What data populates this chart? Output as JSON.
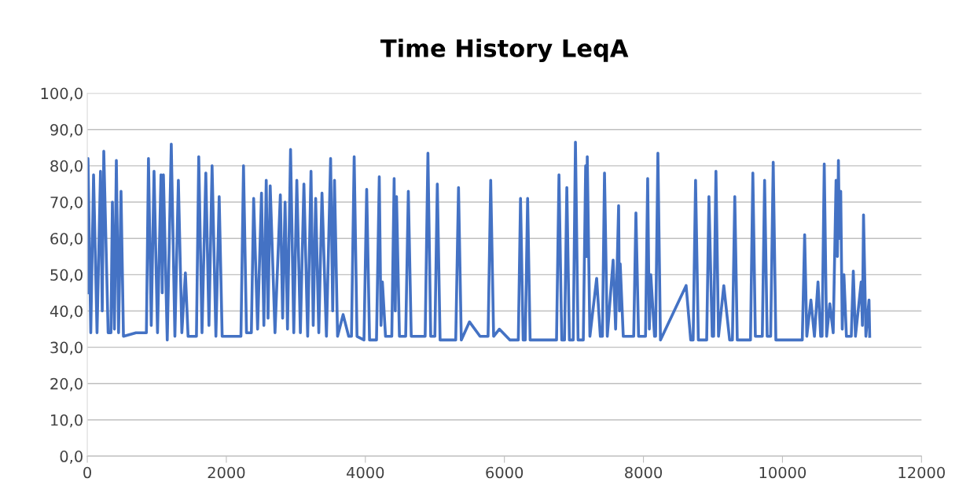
{
  "chart_data": {
    "type": "line",
    "title": "Time History LeqA",
    "x": [
      0,
      10,
      50,
      90,
      140,
      190,
      215,
      237,
      300,
      340,
      361,
      390,
      418,
      450,
      485,
      520,
      700,
      850,
      880,
      920,
      960,
      1010,
      1060,
      1078,
      1095,
      1150,
      1208,
      1260,
      1310,
      1360,
      1411,
      1450,
      1570,
      1603,
      1650,
      1705,
      1750,
      1795,
      1850,
      1897,
      1940,
      2210,
      2247,
      2290,
      2360,
      2393,
      2450,
      2506,
      2540,
      2574,
      2600,
      2631,
      2700,
      2777,
      2810,
      2845,
      2880,
      2924,
      2970,
      3014,
      3065,
      3116,
      3170,
      3218,
      3250,
      3285,
      3330,
      3376,
      3440,
      3500,
      3530,
      3556,
      3600,
      3680,
      3760,
      3800,
      3839,
      3880,
      3980,
      4019,
      4060,
      4160,
      4200,
      4225,
      4245,
      4290,
      4380,
      4414,
      4430,
      4448,
      4490,
      4580,
      4618,
      4660,
      4860,
      4900,
      4940,
      5000,
      5035,
      5075,
      5300,
      5340,
      5380,
      5498,
      5650,
      5765,
      5803,
      5845,
      5927,
      6080,
      6200,
      6232,
      6270,
      6300,
      6334,
      6370,
      6750,
      6785,
      6825,
      6865,
      6898,
      6935,
      6990,
      7022,
      7060,
      7135,
      7169,
      7180,
      7192,
      7230,
      7327,
      7380,
      7410,
      7440,
      7480,
      7564,
      7600,
      7643,
      7655,
      7666,
      7710,
      7860,
      7892,
      7930,
      8030,
      8061,
      8085,
      8106,
      8160,
      8175,
      8208,
      8245,
      8614,
      8680,
      8715,
      8750,
      8790,
      8910,
      8942,
      8990,
      9010,
      9043,
      9080,
      9156,
      9240,
      9280,
      9314,
      9350,
      9540,
      9574,
      9610,
      9710,
      9743,
      9780,
      9830,
      9867,
      9905,
      10285,
      10319,
      10350,
      10409,
      10460,
      10511,
      10550,
      10570,
      10601,
      10635,
      10681,
      10730,
      10771,
      10790,
      10805,
      10820,
      10838,
      10860,
      10884,
      10920,
      10990,
      11019,
      11050,
      11132,
      11150,
      11166,
      11200,
      11245,
      11255
    ],
    "series": [
      {
        "color": "#4472c4",
        "values": [
          45,
          82,
          34,
          77.5,
          34,
          78.5,
          40,
          84,
          34,
          34,
          70,
          35,
          81.5,
          34,
          73,
          33,
          34,
          34,
          82,
          36,
          78.5,
          34,
          77.5,
          45,
          77.5,
          32,
          86,
          33,
          76,
          34,
          50.5,
          33,
          33,
          82.5,
          34,
          78,
          36,
          80,
          33,
          71.5,
          33,
          33,
          80,
          34,
          34,
          71,
          35,
          72.5,
          36,
          76,
          38,
          74.5,
          34,
          72,
          38,
          70,
          35,
          84.5,
          34,
          76,
          34,
          75,
          33,
          78.5,
          36,
          71,
          34,
          72.5,
          33,
          82,
          40,
          76,
          33,
          39,
          33,
          33,
          82.5,
          33,
          32,
          73.5,
          32,
          32,
          77,
          36,
          48,
          33,
          33,
          76.5,
          40,
          71.5,
          33,
          33,
          73,
          33,
          33,
          83.5,
          33,
          33,
          75,
          32,
          32,
          74,
          32,
          37,
          33,
          33,
          76,
          33,
          35,
          32,
          32,
          71,
          32,
          32,
          71,
          32,
          32,
          77.5,
          32,
          32,
          74,
          32,
          32,
          86.5,
          32,
          32,
          80,
          55,
          82.5,
          33,
          49,
          33,
          33,
          78,
          33,
          54,
          35,
          69,
          40,
          53,
          33,
          33,
          67,
          33,
          33,
          76.5,
          35,
          50,
          33,
          33,
          83.5,
          32,
          47,
          32,
          32,
          76,
          32,
          32,
          71.5,
          33,
          33,
          78.5,
          33,
          47,
          32,
          32,
          71.5,
          32,
          32,
          78,
          33,
          33,
          76,
          33,
          33,
          81,
          32,
          32,
          61,
          33,
          43,
          33,
          48,
          33,
          33,
          80.5,
          33,
          42,
          34,
          76,
          55,
          81.5,
          60,
          73,
          35,
          50,
          33,
          33,
          51,
          33,
          48,
          36,
          66.5,
          33,
          43,
          33
        ]
      }
    ],
    "xlim": [
      0,
      12000
    ],
    "xticks": [
      0,
      2000,
      4000,
      6000,
      8000,
      10000,
      12000
    ],
    "ylim": [
      0,
      100
    ],
    "yticks": [
      {
        "value": 0,
        "label": "0,0"
      },
      {
        "value": 10,
        "label": "10,0"
      },
      {
        "value": 20,
        "label": "20,0"
      },
      {
        "value": 30,
        "label": "30,0"
      },
      {
        "value": 40,
        "label": "40,0"
      },
      {
        "value": 50,
        "label": "50,0"
      },
      {
        "value": 60,
        "label": "60,0"
      },
      {
        "value": 70,
        "label": "70,0"
      },
      {
        "value": 80,
        "label": "80,0"
      },
      {
        "value": 90,
        "label": "90,0"
      },
      {
        "value": 100,
        "label": "100,0"
      }
    ],
    "grid": "y",
    "marker": "none",
    "line_style": "solid"
  }
}
